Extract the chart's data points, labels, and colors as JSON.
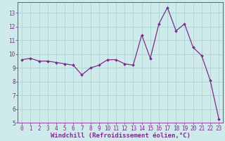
{
  "x": [
    0,
    1,
    2,
    3,
    4,
    5,
    6,
    7,
    8,
    9,
    10,
    11,
    12,
    13,
    14,
    15,
    16,
    17,
    18,
    19,
    20,
    21,
    22,
    23
  ],
  "y": [
    9.6,
    9.7,
    9.5,
    9.5,
    9.4,
    9.3,
    9.2,
    8.5,
    9.0,
    9.2,
    9.6,
    9.6,
    9.3,
    9.2,
    11.4,
    9.7,
    12.2,
    13.4,
    11.7,
    12.2,
    10.5,
    9.9,
    8.1,
    5.3
  ],
  "line_color": "#7b2d8b",
  "marker": "D",
  "marker_size": 2.0,
  "bg_color": "#ceeaea",
  "grid_color": "#b0d8d8",
  "xlabel": "Windchill (Refroidissement éolien,°C)",
  "xlim": [
    -0.5,
    23.5
  ],
  "ylim": [
    5,
    13.8
  ],
  "yticks": [
    5,
    6,
    7,
    8,
    9,
    10,
    11,
    12,
    13
  ],
  "xticks": [
    0,
    1,
    2,
    3,
    4,
    5,
    6,
    7,
    8,
    9,
    10,
    11,
    12,
    13,
    14,
    15,
    16,
    17,
    18,
    19,
    20,
    21,
    22,
    23
  ],
  "axis_color": "#7b2d8b",
  "tick_fontsize": 5.5,
  "label_fontsize": 6.5
}
